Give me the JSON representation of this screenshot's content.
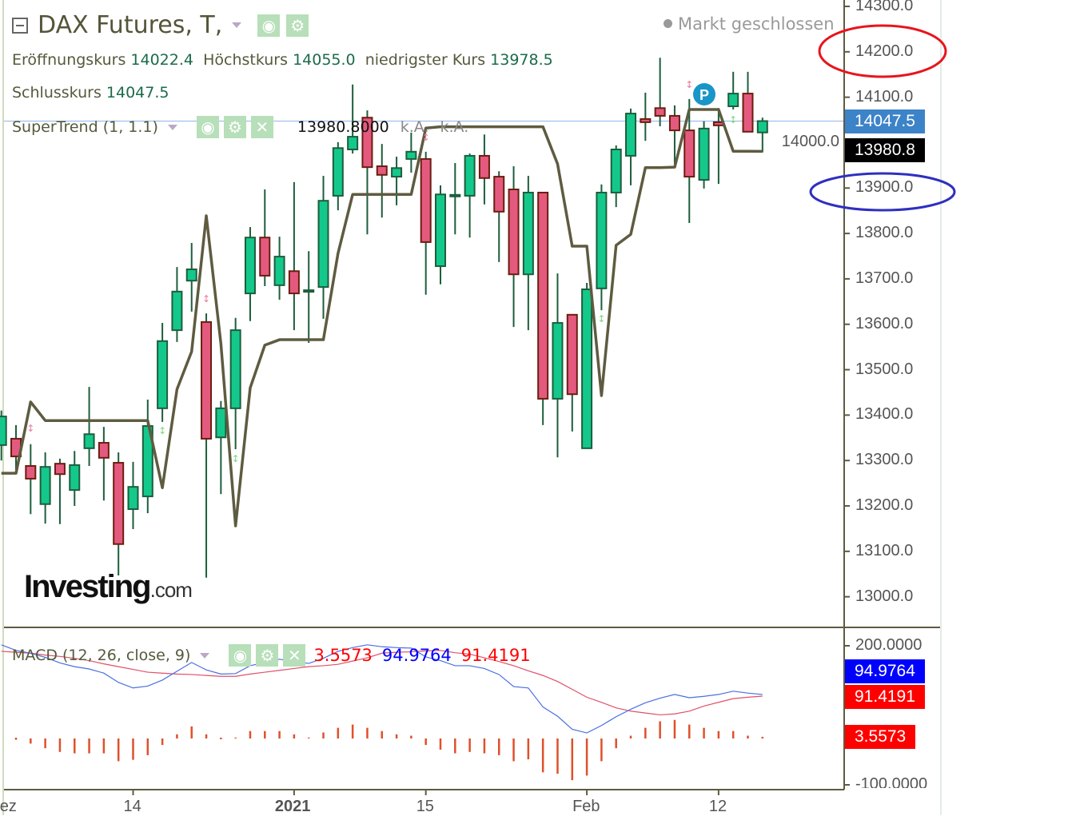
{
  "header": {
    "title": "DAX Futures, T,",
    "market_status": "Markt geschlossen",
    "ohlc": [
      {
        "label": "Eröffnungskurs",
        "value": "14022.4"
      },
      {
        "label": "Höchstkurs",
        "value": "14055.0"
      },
      {
        "label": "niedrigster Kurs",
        "value": "13978.5"
      }
    ],
    "close": {
      "label": "Schlusskurs",
      "value": "14047.5"
    }
  },
  "supertrend_legend": {
    "label": "SuperTrend (1, 1.1)",
    "value": "13980.8000",
    "na1": "k.A.",
    "na2": "k.A."
  },
  "macd_legend": {
    "label": "MACD (12, 26, close, 9)",
    "hist": "3.5573",
    "macd": "94.9764",
    "signal": "91.4191"
  },
  "icons": [
    "collapse-icon",
    "dropdown-caret-icon",
    "eye-icon",
    "gear-icon",
    "close-icon",
    "p-badge-icon"
  ],
  "logo": {
    "text": "Investing",
    "suffix": ".com"
  },
  "badge": "P",
  "price_labels": {
    "last": "14047.5",
    "supertrend": "13980.8"
  },
  "macd_labels": {
    "macd": "94.9764",
    "signal": "91.4191",
    "hist": "3.5573"
  },
  "colors": {
    "up": "#14c88c",
    "down": "#e45a7e",
    "supertrend": "#5e5b40",
    "macd": "#0000ff",
    "signal": "#ff0000",
    "hist": "#e0502a",
    "last_price": "#3c83c8"
  },
  "chart_data": [
    {
      "type": "candlestick",
      "yaxis_ticks": [
        "14300.0",
        "14200.0",
        "14100.0",
        "14000.0",
        "13900.0",
        "13800.0",
        "13700.0",
        "13600.0",
        "13500.0",
        "13400.0",
        "13300.0",
        "13200.0",
        "13100.0",
        "13000.0"
      ],
      "ylim": [
        12920,
        14300
      ],
      "x_tick_labels": [
        {
          "i": 0,
          "label": "ez"
        },
        {
          "i": 9,
          "label": "14"
        },
        {
          "i": 20,
          "label": "2021",
          "bold": true
        },
        {
          "i": 29,
          "label": "15"
        },
        {
          "i": 40,
          "label": "Feb"
        },
        {
          "i": 49,
          "label": "12"
        }
      ],
      "candles": [
        [
          13334,
          13410,
          13300,
          13397
        ],
        [
          13348,
          13378,
          13276,
          13309
        ],
        [
          13288,
          13336,
          13182,
          13260
        ],
        [
          13204,
          13318,
          13161,
          13286
        ],
        [
          13293,
          13304,
          13160,
          13270
        ],
        [
          13235,
          13321,
          13200,
          13290
        ],
        [
          13327,
          13462,
          13288,
          13358
        ],
        [
          13339,
          13374,
          13212,
          13306
        ],
        [
          13295,
          13318,
          13047,
          13116
        ],
        [
          13193,
          13297,
          13149,
          13242
        ],
        [
          13221,
          13434,
          13184,
          13376
        ],
        [
          13415,
          13603,
          13385,
          13563
        ],
        [
          13587,
          13726,
          13561,
          13672
        ],
        [
          13696,
          13779,
          13628,
          13721
        ],
        [
          13605,
          13624,
          13042,
          13348
        ],
        [
          13351,
          13431,
          13226,
          13415
        ],
        [
          13415,
          13614,
          13325,
          13587
        ],
        [
          13668,
          13814,
          13607,
          13791
        ],
        [
          13791,
          13897,
          13684,
          13707
        ],
        [
          13686,
          13793,
          13654,
          13749
        ],
        [
          13717,
          13913,
          13587,
          13668
        ],
        [
          13675,
          13761,
          13559,
          13675
        ],
        [
          13682,
          13927,
          13612,
          13872
        ],
        [
          13883,
          14001,
          13851,
          13988
        ],
        [
          13985,
          14128,
          13976,
          14013
        ],
        [
          14055,
          14071,
          13798,
          13946
        ],
        [
          13948,
          13997,
          13835,
          13929
        ],
        [
          13925,
          13969,
          13862,
          13944
        ],
        [
          13964,
          14022,
          13934,
          13980
        ],
        [
          13964,
          13980,
          13665,
          13781
        ],
        [
          13728,
          13906,
          13688,
          13886
        ],
        [
          13885,
          13955,
          13798,
          13885
        ],
        [
          13883,
          13976,
          13791,
          13971
        ],
        [
          13971,
          14018,
          13864,
          13922
        ],
        [
          13925,
          13937,
          13737,
          13848
        ],
        [
          13897,
          13948,
          13594,
          13710
        ],
        [
          13710,
          13927,
          13587,
          13890
        ],
        [
          13890,
          13890,
          13378,
          13436
        ],
        [
          13436,
          13712,
          13307,
          13603
        ],
        [
          13621,
          13621,
          13364,
          13446
        ],
        [
          13327,
          13691,
          13327,
          13677
        ],
        [
          13679,
          13908,
          13631,
          13890
        ],
        [
          13890,
          13994,
          13858,
          13985
        ],
        [
          13971,
          14075,
          13906,
          14064
        ],
        [
          14052,
          14110,
          14004,
          14045
        ],
        [
          14076,
          14187,
          14036,
          14059
        ],
        [
          14059,
          14082,
          13953,
          14027
        ],
        [
          14027,
          14096,
          13823,
          13925
        ],
        [
          13918,
          14047,
          13899,
          14031
        ],
        [
          14045,
          14076,
          13909,
          14038
        ],
        [
          14080,
          14156,
          14073,
          14108
        ],
        [
          14108,
          14156,
          14024,
          14024
        ],
        [
          14022.4,
          14055.0,
          13978.5,
          14047.5
        ]
      ],
      "supertrend": [
        13272,
        13272,
        13429,
        13388,
        13388,
        13388,
        13388,
        13388,
        13388,
        13388,
        13388,
        13240,
        13457,
        13540,
        13839,
        13557,
        13156,
        13460,
        13554,
        13566,
        13566,
        13566,
        13566,
        13756,
        13886,
        13886,
        13886,
        13886,
        13886,
        14032,
        14035,
        14035,
        14035,
        14035,
        14035,
        14035,
        14035,
        14035,
        13953,
        13772,
        13772,
        13443,
        13774,
        13798,
        13945,
        13945,
        13946,
        14073,
        14073,
        14073,
        13981,
        13981,
        13980.8
      ],
      "last_price": 14047.5
    },
    {
      "type": "macd",
      "yaxis_ticks": [
        "200.0000",
        "-100.0000"
      ],
      "ylim": [
        -110,
        200
      ],
      "macd": [
        202,
        190,
        184,
        175,
        163,
        155,
        150,
        141,
        121,
        109,
        113,
        126,
        145,
        164,
        148,
        139,
        140,
        157,
        164,
        171,
        166,
        162,
        173,
        188,
        196,
        202,
        198,
        196,
        195,
        176,
        168,
        157,
        157,
        151,
        138,
        112,
        109,
        68,
        48,
        20,
        12,
        28,
        47,
        63,
        77,
        87,
        95,
        88,
        91,
        95,
        102,
        98,
        94.9764
      ],
      "signal": [
        188,
        186,
        184,
        180,
        177,
        173,
        168,
        161,
        155,
        149,
        143,
        141,
        139,
        138,
        136,
        134,
        134,
        139,
        143,
        147,
        151,
        155,
        157,
        160,
        167,
        174,
        184,
        186,
        187,
        189,
        190,
        185,
        182,
        174,
        166,
        157,
        146,
        136,
        123,
        106,
        89,
        78,
        66,
        59,
        55,
        51,
        53,
        59,
        70,
        78,
        86,
        89,
        91.4191
      ],
      "histogram": [
        null,
        -1,
        -11,
        -21,
        -29,
        -32,
        -32,
        -32,
        -49,
        -46,
        -36,
        -14,
        9,
        26,
        9,
        0,
        2,
        16,
        16,
        16,
        9,
        2,
        13,
        23,
        30,
        23,
        16,
        9,
        6,
        -14,
        -24,
        -32,
        -29,
        -32,
        -36,
        -49,
        -45,
        -73,
        -76,
        -90,
        -80,
        -49,
        -21,
        6,
        23,
        37,
        40,
        30,
        23,
        16,
        16,
        6,
        3.5573
      ]
    }
  ]
}
